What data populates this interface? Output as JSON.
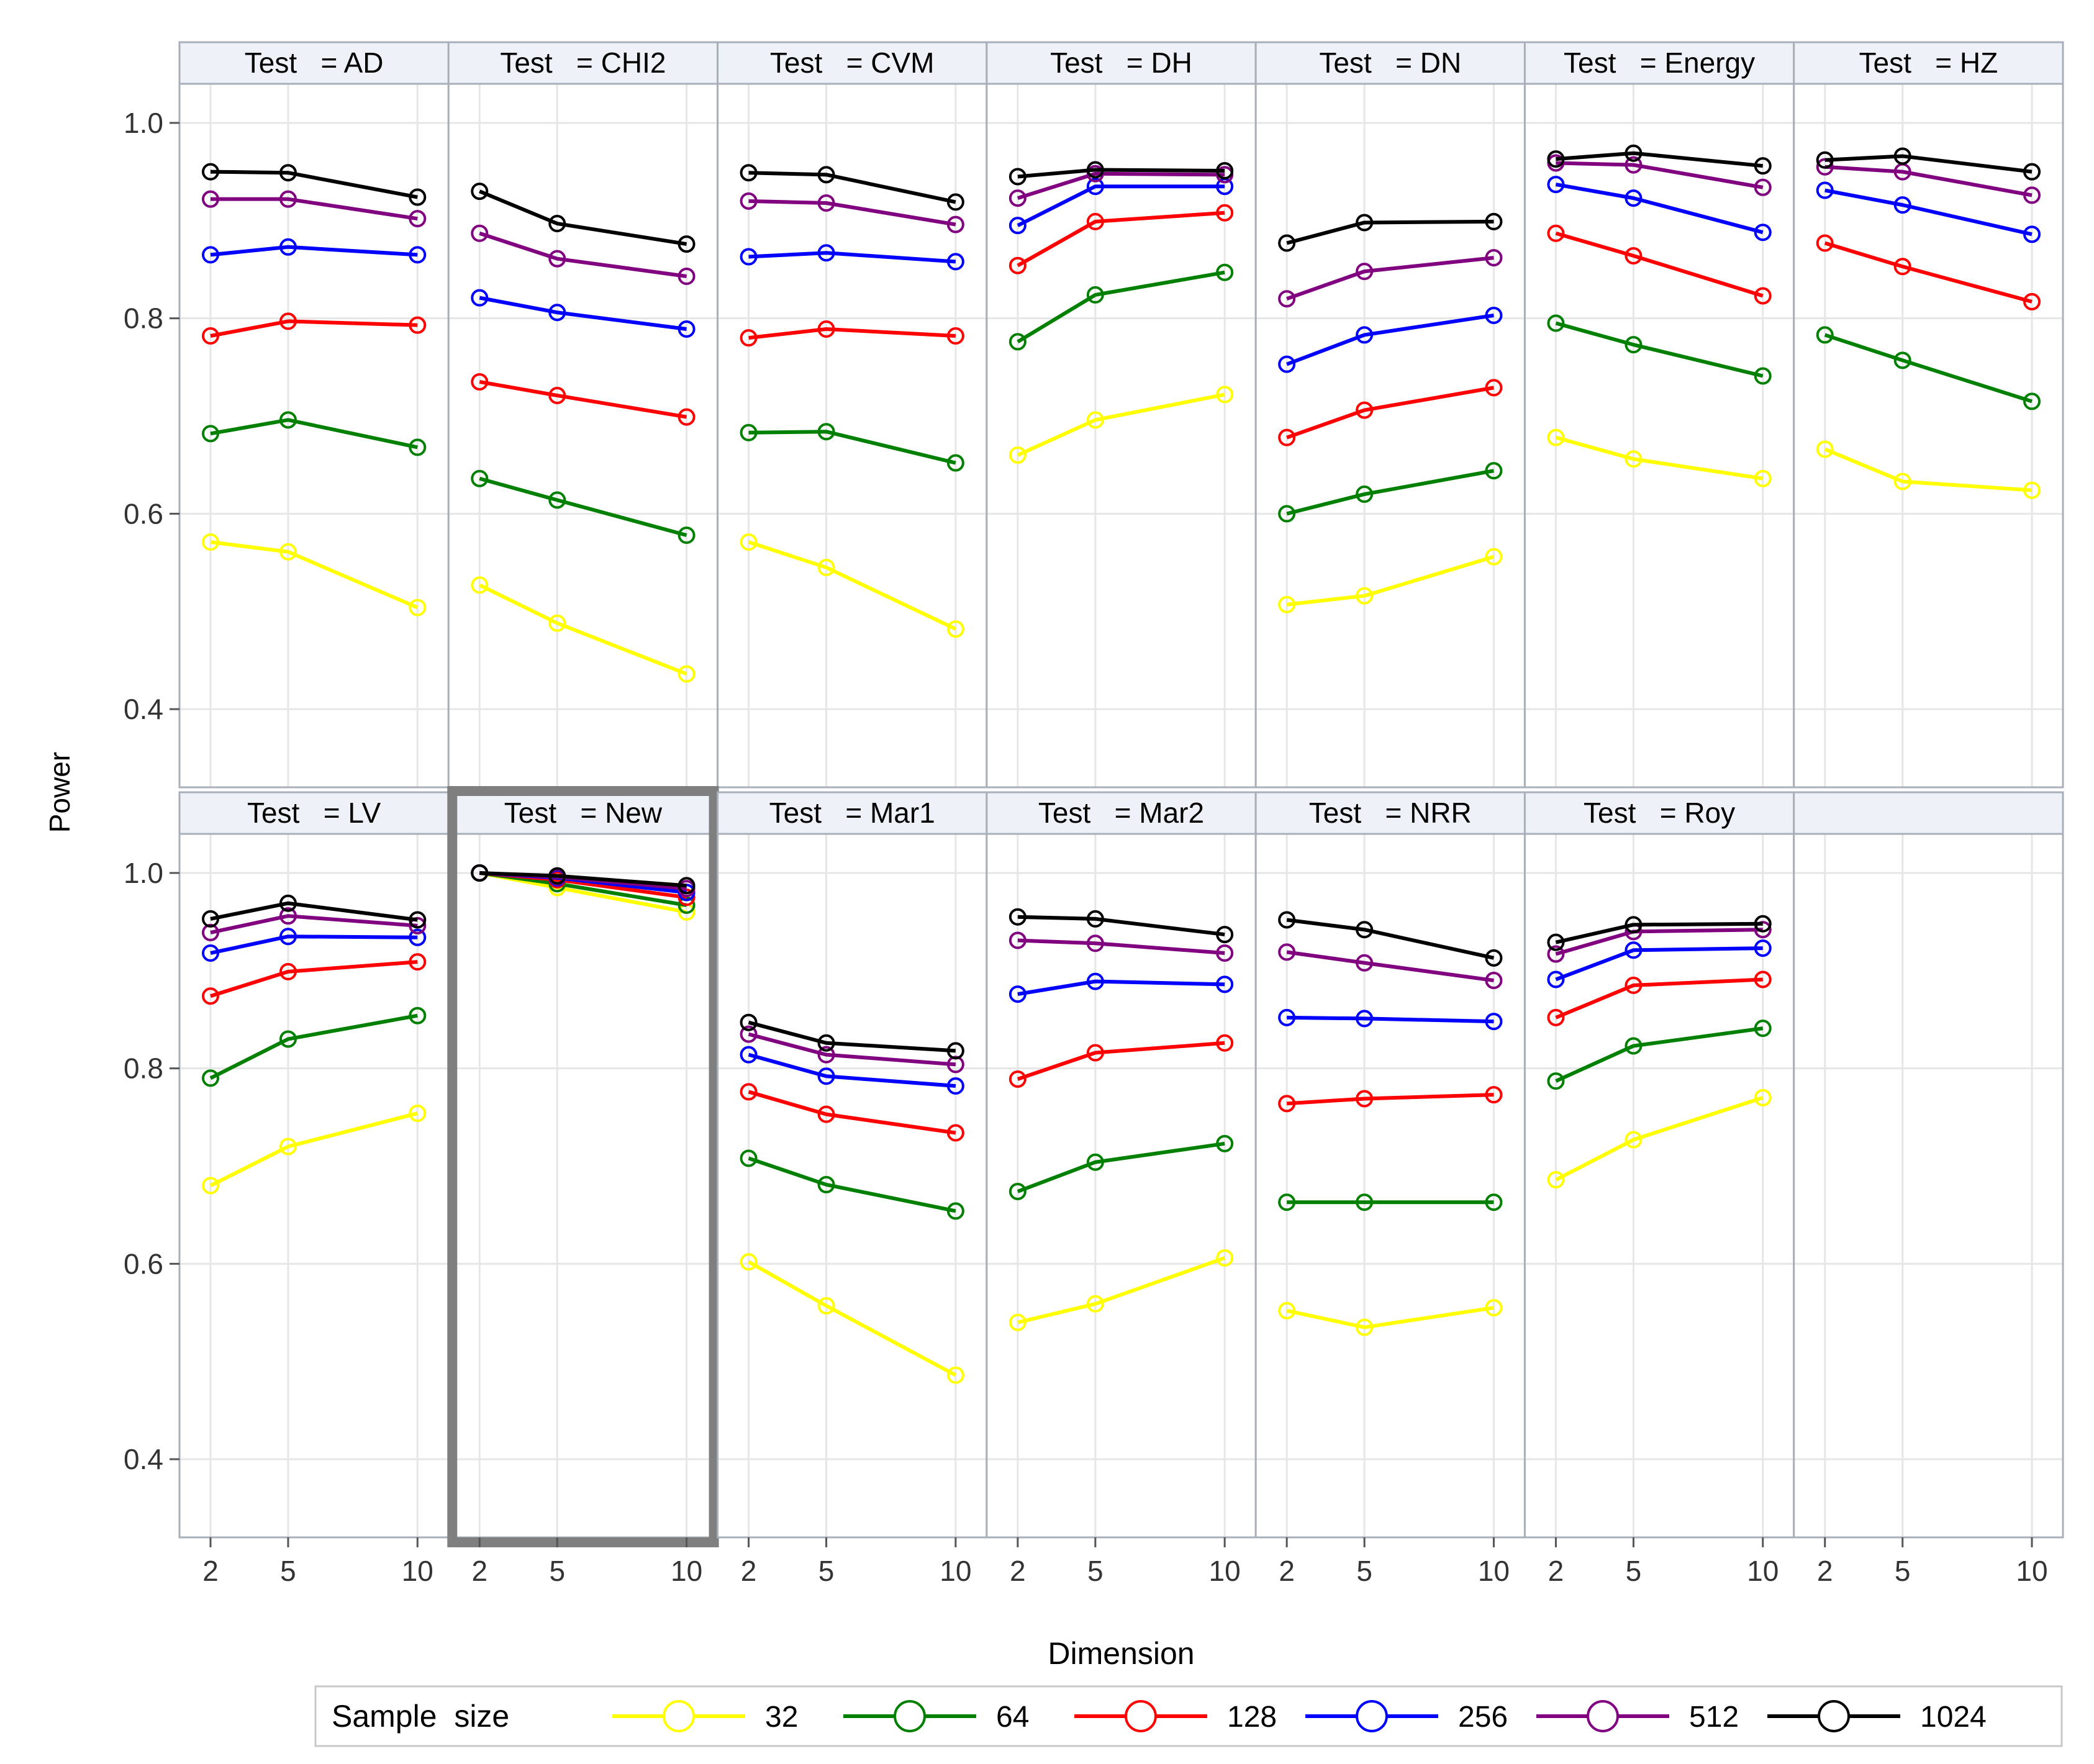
{
  "chart_data": {
    "type": "line",
    "title": "",
    "xlabel": "Dimension",
    "ylabel": "Power",
    "x": [
      2,
      5,
      10
    ],
    "x_ticks": [
      "2",
      "5",
      "10"
    ],
    "y_ticks": [
      "0.4",
      "0.6",
      "0.8",
      "1.0"
    ],
    "ylim": [
      0.32,
      1.04
    ],
    "xlim": [
      0.8,
      11.2
    ],
    "grid": true,
    "layout": "7 columns x 2 rows of panels",
    "legend": {
      "title": "Sample  size",
      "position": "bottom",
      "entries": [
        "32",
        "64",
        "128",
        "256",
        "512",
        "1024"
      ]
    },
    "series_colors": {
      "32": "#ffff00",
      "64": "#008000",
      "128": "#ff0000",
      "256": "#0000ff",
      "512": "#800080",
      "1024": "#000000"
    },
    "highlighted_panel": "New",
    "panels": [
      {
        "label": "Test   = AD",
        "test": "AD",
        "series": [
          {
            "name": "32",
            "values": [
              0.571,
              0.561,
              0.504
            ]
          },
          {
            "name": "64",
            "values": [
              0.682,
              0.696,
              0.668
            ]
          },
          {
            "name": "128",
            "values": [
              0.782,
              0.797,
              0.793
            ]
          },
          {
            "name": "256",
            "values": [
              0.865,
              0.873,
              0.865
            ]
          },
          {
            "name": "512",
            "values": [
              0.922,
              0.922,
              0.902
            ]
          },
          {
            "name": "1024",
            "values": [
              0.95,
              0.949,
              0.924
            ]
          }
        ]
      },
      {
        "label": "Test   = CHI2",
        "test": "CHI2",
        "series": [
          {
            "name": "32",
            "values": [
              0.527,
              0.488,
              0.436
            ]
          },
          {
            "name": "64",
            "values": [
              0.636,
              0.614,
              0.578
            ]
          },
          {
            "name": "128",
            "values": [
              0.735,
              0.721,
              0.699
            ]
          },
          {
            "name": "256",
            "values": [
              0.821,
              0.806,
              0.789
            ]
          },
          {
            "name": "512",
            "values": [
              0.887,
              0.861,
              0.843
            ]
          },
          {
            "name": "1024",
            "values": [
              0.93,
              0.897,
              0.876
            ]
          }
        ]
      },
      {
        "label": "Test   = CVM",
        "test": "CVM",
        "series": [
          {
            "name": "32",
            "values": [
              0.571,
              0.545,
              0.482
            ]
          },
          {
            "name": "64",
            "values": [
              0.683,
              0.684,
              0.652
            ]
          },
          {
            "name": "128",
            "values": [
              0.78,
              0.789,
              0.782
            ]
          },
          {
            "name": "256",
            "values": [
              0.863,
              0.867,
              0.858
            ]
          },
          {
            "name": "512",
            "values": [
              0.92,
              0.918,
              0.896
            ]
          },
          {
            "name": "1024",
            "values": [
              0.949,
              0.947,
              0.919
            ]
          }
        ]
      },
      {
        "label": "Test   = DH",
        "test": "DH",
        "series": [
          {
            "name": "32",
            "values": [
              0.66,
              0.696,
              0.722
            ]
          },
          {
            "name": "64",
            "values": [
              0.776,
              0.824,
              0.847
            ]
          },
          {
            "name": "128",
            "values": [
              0.854,
              0.899,
              0.908
            ]
          },
          {
            "name": "256",
            "values": [
              0.895,
              0.935,
              0.935
            ]
          },
          {
            "name": "512",
            "values": [
              0.923,
              0.948,
              0.947
            ]
          },
          {
            "name": "1024",
            "values": [
              0.945,
              0.952,
              0.951
            ]
          }
        ]
      },
      {
        "label": "Test   = DN",
        "test": "DN",
        "series": [
          {
            "name": "32",
            "values": [
              0.507,
              0.516,
              0.556
            ]
          },
          {
            "name": "64",
            "values": [
              0.6,
              0.62,
              0.644
            ]
          },
          {
            "name": "128",
            "values": [
              0.678,
              0.706,
              0.729
            ]
          },
          {
            "name": "256",
            "values": [
              0.753,
              0.783,
              0.803
            ]
          },
          {
            "name": "512",
            "values": [
              0.82,
              0.848,
              0.862
            ]
          },
          {
            "name": "1024",
            "values": [
              0.877,
              0.898,
              0.899
            ]
          }
        ]
      },
      {
        "label": "Test   = Energy",
        "test": "Energy",
        "series": [
          {
            "name": "32",
            "values": [
              0.678,
              0.656,
              0.636
            ]
          },
          {
            "name": "64",
            "values": [
              0.795,
              0.773,
              0.741
            ]
          },
          {
            "name": "128",
            "values": [
              0.887,
              0.864,
              0.823
            ]
          },
          {
            "name": "256",
            "values": [
              0.937,
              0.923,
              0.888
            ]
          },
          {
            "name": "512",
            "values": [
              0.959,
              0.957,
              0.934
            ]
          },
          {
            "name": "1024",
            "values": [
              0.963,
              0.969,
              0.956
            ]
          }
        ]
      },
      {
        "label": "Test   = HZ",
        "test": "HZ",
        "series": [
          {
            "name": "32",
            "values": [
              0.666,
              0.633,
              0.624
            ]
          },
          {
            "name": "64",
            "values": [
              0.783,
              0.757,
              0.715
            ]
          },
          {
            "name": "128",
            "values": [
              0.877,
              0.853,
              0.817
            ]
          },
          {
            "name": "256",
            "values": [
              0.931,
              0.916,
              0.886
            ]
          },
          {
            "name": "512",
            "values": [
              0.955,
              0.95,
              0.926
            ]
          },
          {
            "name": "1024",
            "values": [
              0.962,
              0.966,
              0.95
            ]
          }
        ]
      },
      {
        "label": "Test   = LV",
        "test": "LV",
        "series": [
          {
            "name": "32",
            "values": [
              0.68,
              0.72,
              0.754
            ]
          },
          {
            "name": "64",
            "values": [
              0.79,
              0.83,
              0.854
            ]
          },
          {
            "name": "128",
            "values": [
              0.874,
              0.899,
              0.909
            ]
          },
          {
            "name": "256",
            "values": [
              0.918,
              0.935,
              0.934
            ]
          },
          {
            "name": "512",
            "values": [
              0.939,
              0.956,
              0.946
            ]
          },
          {
            "name": "1024",
            "values": [
              0.953,
              0.969,
              0.952
            ]
          }
        ]
      },
      {
        "label": "Test   = New",
        "test": "New",
        "series": [
          {
            "name": "32",
            "values": [
              1.0,
              0.985,
              0.96
            ]
          },
          {
            "name": "64",
            "values": [
              1.0,
              0.989,
              0.967
            ]
          },
          {
            "name": "128",
            "values": [
              1.0,
              0.993,
              0.975
            ]
          },
          {
            "name": "256",
            "values": [
              1.0,
              0.995,
              0.98
            ]
          },
          {
            "name": "512",
            "values": [
              1.0,
              0.996,
              0.984
            ]
          },
          {
            "name": "1024",
            "values": [
              1.0,
              0.997,
              0.987
            ]
          }
        ]
      },
      {
        "label": "Test   = Mar1",
        "test": "Mar1",
        "series": [
          {
            "name": "32",
            "values": [
              0.602,
              0.557,
              0.486
            ]
          },
          {
            "name": "64",
            "values": [
              0.708,
              0.681,
              0.654
            ]
          },
          {
            "name": "128",
            "values": [
              0.776,
              0.753,
              0.734
            ]
          },
          {
            "name": "256",
            "values": [
              0.814,
              0.792,
              0.782
            ]
          },
          {
            "name": "512",
            "values": [
              0.835,
              0.814,
              0.804
            ]
          },
          {
            "name": "1024",
            "values": [
              0.847,
              0.826,
              0.818
            ]
          }
        ]
      },
      {
        "label": "Test   = Mar2",
        "test": "Mar2",
        "series": [
          {
            "name": "32",
            "values": [
              0.54,
              0.559,
              0.606
            ]
          },
          {
            "name": "64",
            "values": [
              0.674,
              0.704,
              0.723
            ]
          },
          {
            "name": "128",
            "values": [
              0.789,
              0.816,
              0.826
            ]
          },
          {
            "name": "256",
            "values": [
              0.876,
              0.889,
              0.886
            ]
          },
          {
            "name": "512",
            "values": [
              0.931,
              0.928,
              0.918
            ]
          },
          {
            "name": "1024",
            "values": [
              0.955,
              0.953,
              0.937
            ]
          }
        ]
      },
      {
        "label": "Test   = NRR",
        "test": "NRR",
        "series": [
          {
            "name": "32",
            "values": [
              0.552,
              0.535,
              0.555
            ]
          },
          {
            "name": "64",
            "values": [
              0.663,
              0.663,
              0.663
            ]
          },
          {
            "name": "128",
            "values": [
              0.764,
              0.769,
              0.773
            ]
          },
          {
            "name": "256",
            "values": [
              0.852,
              0.851,
              0.848
            ]
          },
          {
            "name": "512",
            "values": [
              0.919,
              0.908,
              0.89
            ]
          },
          {
            "name": "1024",
            "values": [
              0.952,
              0.942,
              0.913
            ]
          }
        ]
      },
      {
        "label": "Test   = Roy",
        "test": "Roy",
        "series": [
          {
            "name": "32",
            "values": [
              0.686,
              0.727,
              0.77
            ]
          },
          {
            "name": "64",
            "values": [
              0.787,
              0.823,
              0.841
            ]
          },
          {
            "name": "128",
            "values": [
              0.852,
              0.885,
              0.891
            ]
          },
          {
            "name": "256",
            "values": [
              0.891,
              0.921,
              0.923
            ]
          },
          {
            "name": "512",
            "values": [
              0.917,
              0.94,
              0.942
            ]
          },
          {
            "name": "1024",
            "values": [
              0.929,
              0.947,
              0.948
            ]
          }
        ]
      }
    ]
  }
}
